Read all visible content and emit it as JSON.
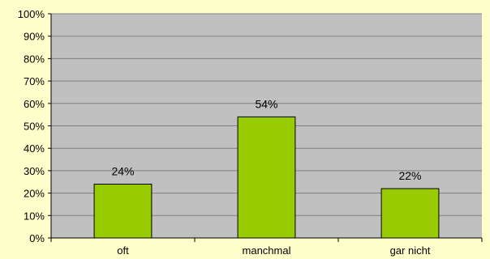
{
  "chart_data": {
    "type": "bar",
    "categories": [
      "oft",
      "manchmal",
      "gar nicht"
    ],
    "values": [
      24,
      54,
      22
    ],
    "data_labels": [
      "24%",
      "54%",
      "22%"
    ],
    "ylim": [
      0,
      100
    ],
    "yticks": [
      0,
      10,
      20,
      30,
      40,
      50,
      60,
      70,
      80,
      90,
      100
    ],
    "ytick_labels": [
      "0%",
      "10%",
      "20%",
      "30%",
      "40%",
      "50%",
      "60%",
      "70%",
      "80%",
      "90%",
      "100%"
    ],
    "title": "",
    "xlabel": "",
    "ylabel": "",
    "grid": true,
    "legend": "none",
    "colors": {
      "background": "#ffffcc",
      "plot_area": "#c0c0c0",
      "bar_fill": "#99cc00",
      "bar_stroke": "#000000",
      "gridline": "#808080",
      "axis": "#000000"
    }
  }
}
